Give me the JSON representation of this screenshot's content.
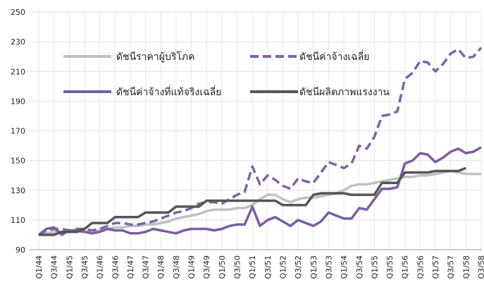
{
  "chart_data": {
    "type": "line",
    "categories": [
      "Q1/44",
      null,
      "Q3/44",
      null,
      "Q1/45",
      null,
      "Q3/45",
      null,
      "Q1/46",
      null,
      "Q3/46",
      null,
      "Q1/47",
      null,
      "Q3/47",
      null,
      "Q1/48",
      null,
      "Q3/48",
      null,
      "Q1/49",
      null,
      "Q3/49",
      null,
      "Q1/50",
      null,
      "Q3/50",
      null,
      "Q1/51",
      null,
      "Q3/51",
      null,
      "Q1/52",
      null,
      "Q3/52",
      null,
      "Q1/53",
      null,
      "Q3/53",
      null,
      "Q1/54",
      null,
      "Q3/54",
      null,
      "Q1/55",
      null,
      "Q3/55",
      null,
      "Q1/56",
      null,
      "Q3/56",
      null,
      "Q1/57",
      null,
      "Q3/57",
      null,
      "Q1/58",
      null,
      "Q3/58"
    ],
    "series": [
      {
        "name": "ดัชนีราคาผู้บริโภค",
        "color": "#c0c0c0",
        "dashed": false,
        "values": [
          100,
          101,
          102,
          102,
          103,
          102,
          102,
          103,
          103,
          104,
          105,
          105,
          106,
          106,
          107,
          107,
          108,
          109,
          111,
          112,
          113,
          114,
          116,
          117,
          117,
          117,
          118,
          118,
          120,
          124,
          127,
          127,
          124,
          122,
          124,
          125,
          125,
          126,
          127,
          128,
          130,
          133,
          134,
          134,
          135,
          136,
          137,
          138,
          139,
          139,
          140,
          140,
          141,
          142,
          143,
          142,
          141,
          141,
          141
        ]
      },
      {
        "name": "ดัชนีค่าจ้างเฉลี่ย",
        "color": "#8064a2",
        "dashed": true,
        "values": [
          100,
          103,
          104,
          104,
          103,
          104,
          104,
          103,
          104,
          106,
          108,
          108,
          107,
          107,
          108,
          109,
          111,
          113,
          115,
          116,
          118,
          121,
          122,
          122,
          121,
          124,
          127,
          129,
          146,
          134,
          140,
          137,
          133,
          131,
          138,
          136,
          135,
          142,
          149,
          147,
          145,
          148,
          160,
          158,
          166,
          180,
          181,
          183,
          205,
          209,
          217,
          216,
          210,
          215,
          222,
          225,
          219,
          220,
          226
        ]
      },
      {
        "name": "ดัชนีค่าจ้างที่แท้จริงเฉลี่ย",
        "color": "#7b5ea0",
        "dashed": false,
        "values": [
          100,
          104,
          105,
          100,
          103,
          103,
          102,
          101,
          102,
          104,
          103,
          103,
          101,
          101,
          102,
          104,
          103,
          102,
          101,
          103,
          104,
          104,
          104,
          103,
          104,
          106,
          107,
          107,
          119,
          106,
          110,
          112,
          109,
          106,
          110,
          108,
          106,
          109,
          115,
          113,
          111,
          111,
          118,
          117,
          124,
          131,
          131,
          132,
          148,
          150,
          155,
          154,
          149,
          152,
          156,
          158,
          155,
          156,
          159
        ]
      },
      {
        "name": "ดัชนีผลิตภาพแรงงาน",
        "color": "#555555",
        "dashed": false,
        "values": [
          100,
          100,
          100,
          102,
          102,
          102,
          104,
          108,
          108,
          108,
          112,
          112,
          112,
          112,
          115,
          115,
          115,
          115,
          119,
          119,
          119,
          119,
          123,
          123,
          123,
          123,
          123,
          123,
          123,
          123,
          123,
          123,
          120,
          120,
          120,
          120,
          127,
          128,
          128,
          128,
          128,
          127,
          127,
          127,
          127,
          135,
          135,
          135,
          142,
          142,
          142,
          142,
          143,
          143,
          143,
          143,
          145,
          null,
          null
        ]
      }
    ],
    "ylim": [
      90,
      250
    ],
    "yticks": [
      90,
      110,
      130,
      150,
      170,
      190,
      210,
      230,
      250
    ],
    "grid": true
  }
}
